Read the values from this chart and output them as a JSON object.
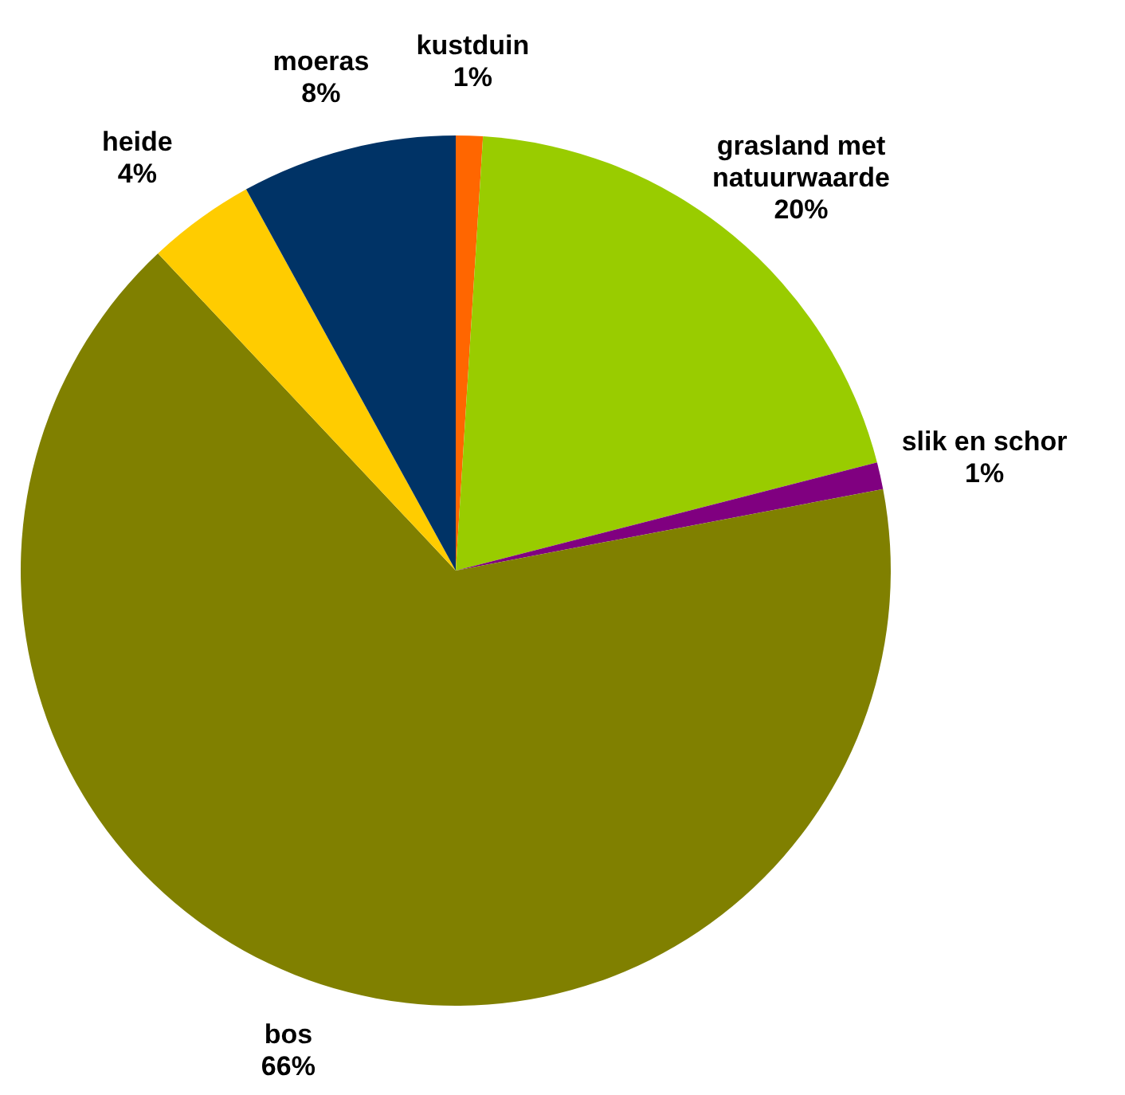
{
  "chart_data": {
    "type": "pie",
    "categories": [
      "kustduin",
      "grasland met natuurwaarde",
      "slik en schor",
      "bos",
      "heide",
      "moeras"
    ],
    "values": [
      1,
      20,
      1,
      66,
      4,
      8
    ],
    "colors": [
      "#ff6600",
      "#99cc00",
      "#800080",
      "#808000",
      "#ffcc00",
      "#003366"
    ],
    "value_labels": [
      "1%",
      "20%",
      "1%",
      "66%",
      "4%",
      "8%"
    ],
    "legend": false
  }
}
